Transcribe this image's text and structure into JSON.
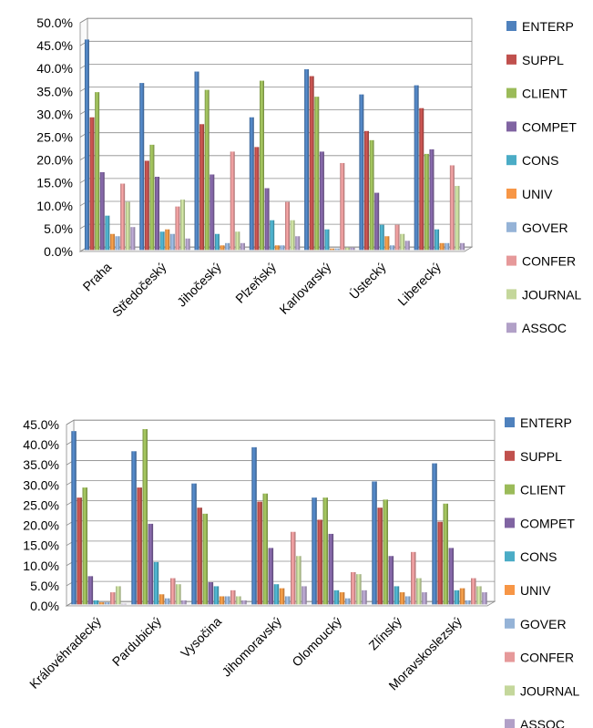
{
  "chart_data": [
    {
      "type": "bar",
      "title": "",
      "xlabel": "",
      "ylabel": "",
      "ylim": [
        0,
        50
      ],
      "ytick_labels": [
        "0.0%",
        "5.0%",
        "10.0%",
        "15.0%",
        "20.0%",
        "25.0%",
        "30.0%",
        "35.0%",
        "40.0%",
        "45.0%",
        "50.0%"
      ],
      "grid": true,
      "legend_position": "right",
      "categories": [
        "Praha",
        "Středočeský",
        "Jihočeský",
        "Plzeňský",
        "Karlovarský",
        "Ústecký",
        "Liberecký"
      ],
      "series": [
        {
          "name": "ENTERP",
          "color": "#4F81BD",
          "values": [
            46.0,
            36.5,
            39.0,
            29.0,
            39.5,
            34.0,
            36.0
          ]
        },
        {
          "name": "SUPPL",
          "color": "#C0504D",
          "values": [
            29.0,
            19.5,
            27.5,
            22.5,
            38.0,
            26.0,
            31.0
          ]
        },
        {
          "name": "CLIENT",
          "color": "#9BBB59",
          "values": [
            34.5,
            23.0,
            35.0,
            37.0,
            33.5,
            24.0,
            21.0
          ]
        },
        {
          "name": "COMPET",
          "color": "#8064A2",
          "values": [
            17.0,
            16.0,
            16.5,
            13.5,
            21.5,
            12.5,
            22.0
          ]
        },
        {
          "name": "CONS",
          "color": "#4BACC6",
          "values": [
            7.5,
            4.0,
            3.5,
            6.5,
            4.5,
            5.5,
            4.5
          ]
        },
        {
          "name": "UNIV",
          "color": "#F79646",
          "values": [
            3.5,
            4.5,
            1.0,
            1.0,
            0.3,
            3.0,
            1.5
          ]
        },
        {
          "name": "GOVER",
          "color": "#95B3D7",
          "values": [
            3.0,
            3.5,
            1.5,
            1.0,
            0.3,
            1.0,
            1.5
          ]
        },
        {
          "name": "CONFER",
          "color": "#E6999A",
          "values": [
            14.5,
            9.5,
            21.5,
            10.5,
            19.0,
            5.5,
            18.5
          ]
        },
        {
          "name": "JOURNAL",
          "color": "#C4D79B",
          "values": [
            10.5,
            11.0,
            4.0,
            6.5,
            0.5,
            3.5,
            14.0
          ]
        },
        {
          "name": "ASSOC",
          "color": "#B1A0C7",
          "values": [
            5.0,
            2.5,
            1.5,
            3.0,
            0.5,
            2.0,
            1.5
          ]
        }
      ]
    },
    {
      "type": "bar",
      "title": "",
      "xlabel": "",
      "ylabel": "",
      "ylim": [
        0,
        45
      ],
      "ytick_labels": [
        "0.0%",
        "5.0%",
        "10.0%",
        "15.0%",
        "20.0%",
        "25.0%",
        "30.0%",
        "35.0%",
        "40.0%",
        "45.0%"
      ],
      "grid": true,
      "legend_position": "right",
      "categories": [
        "Královéhradecký",
        "Pardubický",
        "Vysočina",
        "Jihomoravský",
        "Olomoucký",
        "Zlínský",
        "Moravskoslezský"
      ],
      "series": [
        {
          "name": "ENTERP",
          "color": "#4F81BD",
          "values": [
            43.0,
            38.0,
            30.0,
            39.0,
            26.5,
            30.5,
            35.0
          ]
        },
        {
          "name": "SUPPL",
          "color": "#C0504D",
          "values": [
            26.5,
            29.0,
            24.0,
            25.5,
            21.0,
            24.0,
            20.5
          ]
        },
        {
          "name": "CLIENT",
          "color": "#9BBB59",
          "values": [
            29.0,
            43.5,
            22.5,
            27.5,
            26.5,
            26.0,
            25.0
          ]
        },
        {
          "name": "COMPET",
          "color": "#8064A2",
          "values": [
            7.0,
            20.0,
            5.5,
            14.0,
            17.5,
            12.0,
            14.0
          ]
        },
        {
          "name": "CONS",
          "color": "#4BACC6",
          "values": [
            1.0,
            10.5,
            4.5,
            5.0,
            3.5,
            4.5,
            3.5
          ]
        },
        {
          "name": "UNIV",
          "color": "#F79646",
          "values": [
            0.5,
            2.5,
            2.0,
            4.0,
            3.0,
            3.0,
            4.0
          ]
        },
        {
          "name": "GOVER",
          "color": "#95B3D7",
          "values": [
            0.5,
            1.5,
            2.0,
            2.0,
            1.5,
            2.0,
            1.0
          ]
        },
        {
          "name": "CONFER",
          "color": "#E6999A",
          "values": [
            3.0,
            6.5,
            3.5,
            18.0,
            8.0,
            13.0,
            6.5
          ]
        },
        {
          "name": "JOURNAL",
          "color": "#C4D79B",
          "values": [
            4.5,
            5.0,
            2.0,
            12.0,
            7.5,
            6.5,
            4.5
          ]
        },
        {
          "name": "ASSOC",
          "color": "#B1A0C7",
          "values": [
            0.0,
            1.0,
            1.0,
            4.5,
            3.5,
            3.0,
            3.0
          ]
        }
      ]
    }
  ]
}
